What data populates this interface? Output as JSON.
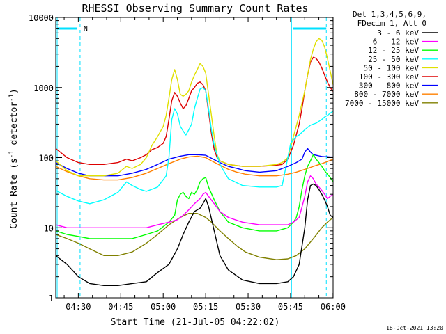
{
  "chart_data": {
    "type": "line",
    "title": "RHESSI Observing Summary Count Rates",
    "xlabel": "Start Time (21-Jul-05 04:22:02)",
    "ylabel_main": "Count Rate (s",
    "ylabel_sup1": "-1",
    "ylabel_mid": " detector",
    "ylabel_sup2": "-1",
    "ylabel_end": ")",
    "yscale": "log",
    "ylim": [
      1,
      10000
    ],
    "xlim_minutes": [
      0,
      98
    ],
    "x_ticks": [
      {
        "m": 7.97,
        "label": "04:30"
      },
      {
        "m": 22.97,
        "label": "04:45"
      },
      {
        "m": 37.97,
        "label": "05:00"
      },
      {
        "m": 52.97,
        "label": "05:15"
      },
      {
        "m": 67.97,
        "label": "05:30"
      },
      {
        "m": 82.97,
        "label": "05:45"
      },
      {
        "m": 97.97,
        "label": "06:00"
      }
    ],
    "y_ticks": [
      {
        "v": 1,
        "label": "1"
      },
      {
        "v": 10,
        "label": "10"
      },
      {
        "v": 100,
        "label": "100"
      },
      {
        "v": 1000,
        "label": "1000"
      },
      {
        "v": 10000,
        "label": "10000"
      }
    ],
    "legend_header": [
      "Det 1,3,4,5,6,9,",
      "FDecim 1, Att 0"
    ],
    "night_marker": "N",
    "footer_date": "18-Oct-2021 13:20",
    "series": [
      {
        "name": "3 - 6 keV",
        "color": "#000000",
        "x": [
          0,
          4,
          8,
          12,
          17,
          22,
          27,
          32,
          36,
          40,
          43,
          45,
          47,
          49,
          51,
          52,
          53,
          54,
          56,
          58,
          61,
          66,
          72,
          78,
          82,
          84,
          86,
          88,
          89,
          90,
          91,
          92,
          93,
          94,
          95,
          96,
          97,
          98
        ],
        "y": [
          4,
          3,
          2,
          1.6,
          1.5,
          1.5,
          1.6,
          1.7,
          2.3,
          3,
          5,
          8,
          12,
          17,
          19,
          22,
          26,
          20,
          9,
          4,
          2.5,
          1.8,
          1.6,
          1.6,
          1.7,
          2,
          3,
          10,
          25,
          40,
          42,
          40,
          35,
          30,
          25,
          20,
          15,
          14
        ]
      },
      {
        "name": "6 - 12 keV",
        "color": "#ff00ff",
        "x": [
          0,
          4,
          8,
          12,
          17,
          22,
          27,
          32,
          36,
          40,
          43,
          45,
          47,
          49,
          51,
          52,
          53,
          54,
          56,
          58,
          61,
          66,
          72,
          78,
          82,
          84,
          86,
          88,
          89,
          90,
          91,
          92,
          93,
          94,
          95,
          96,
          97,
          98
        ],
        "y": [
          11,
          10,
          10,
          10,
          10,
          10,
          10,
          10,
          11,
          12,
          13,
          15,
          18,
          22,
          26,
          30,
          32,
          28,
          22,
          17,
          14,
          12,
          11,
          11,
          11,
          12,
          14,
          28,
          45,
          55,
          50,
          42,
          38,
          34,
          30,
          26,
          28,
          30
        ]
      },
      {
        "name": "12 - 25 keV",
        "color": "#00ff00",
        "x": [
          0,
          4,
          8,
          12,
          17,
          22,
          27,
          32,
          36,
          40,
          42,
          43,
          44,
          45,
          46,
          47,
          48,
          49,
          50,
          51,
          52,
          53,
          54,
          56,
          58,
          61,
          66,
          72,
          78,
          82,
          84,
          85,
          86,
          87,
          88,
          89,
          90,
          91,
          92,
          93,
          94,
          95,
          96,
          97,
          98
        ],
        "y": [
          9,
          8,
          7.5,
          7,
          7,
          7,
          7,
          8,
          9,
          12,
          15,
          25,
          30,
          32,
          28,
          26,
          32,
          30,
          35,
          45,
          50,
          52,
          38,
          25,
          17,
          12,
          10,
          9,
          9,
          10,
          12,
          14,
          20,
          35,
          55,
          75,
          90,
          110,
          95,
          85,
          75,
          65,
          58,
          52,
          45
        ]
      },
      {
        "name": "25 - 50 keV",
        "color": "#00ffff",
        "x": [
          0,
          4,
          8,
          12,
          17,
          22,
          25,
          27,
          30,
          32,
          36,
          39,
          40,
          41,
          42,
          43,
          44,
          45,
          46,
          47,
          48,
          49,
          50,
          51,
          52,
          53,
          54,
          55,
          56,
          58,
          61,
          66,
          72,
          78,
          80,
          82,
          83,
          84,
          85,
          86,
          87,
          88,
          89,
          90,
          91,
          92,
          93,
          94,
          95,
          96,
          97,
          98
        ],
        "y": [
          34,
          28,
          24,
          22,
          25,
          32,
          45,
          40,
          35,
          33,
          38,
          55,
          100,
          350,
          500,
          420,
          280,
          240,
          210,
          250,
          300,
          500,
          700,
          950,
          1000,
          900,
          500,
          250,
          150,
          80,
          50,
          40,
          38,
          38,
          40,
          100,
          160,
          180,
          200,
          210,
          230,
          250,
          270,
          290,
          300,
          310,
          330,
          350,
          380,
          400,
          430,
          460
        ]
      },
      {
        "name": "50 - 100 keV",
        "color": "#e0e000",
        "x": [
          0,
          4,
          8,
          12,
          17,
          22,
          25,
          27,
          30,
          32,
          34,
          36,
          38,
          39,
          40,
          41,
          42,
          43,
          44,
          45,
          46,
          47,
          48,
          49,
          50,
          51,
          52,
          53,
          54,
          55,
          56,
          57,
          58,
          61,
          66,
          72,
          78,
          80,
          82,
          84,
          86,
          87,
          88,
          89,
          90,
          91,
          92,
          93,
          94,
          95,
          96,
          97,
          98
        ],
        "y": [
          90,
          65,
          55,
          55,
          55,
          60,
          75,
          70,
          80,
          100,
          150,
          200,
          280,
          400,
          700,
          1300,
          1800,
          1300,
          800,
          750,
          800,
          900,
          1200,
          1500,
          1800,
          2200,
          2000,
          1600,
          800,
          400,
          200,
          110,
          90,
          80,
          75,
          75,
          80,
          85,
          100,
          200,
          400,
          600,
          900,
          1500,
          2500,
          3500,
          4500,
          5000,
          4700,
          3800,
          2600,
          1700,
          1100
        ]
      },
      {
        "name": "100 - 300 keV",
        "color": "#dd0000",
        "x": [
          0,
          4,
          8,
          12,
          17,
          22,
          25,
          27,
          30,
          32,
          34,
          36,
          38,
          39,
          40,
          41,
          42,
          43,
          44,
          45,
          46,
          47,
          48,
          49,
          50,
          51,
          52,
          53,
          54,
          55,
          56,
          57,
          58,
          61,
          66,
          72,
          78,
          80,
          82,
          84,
          86,
          87,
          88,
          89,
          90,
          91,
          92,
          93,
          94,
          95,
          96,
          97,
          98
        ],
        "y": [
          135,
          100,
          85,
          80,
          80,
          85,
          95,
          90,
          100,
          110,
          130,
          140,
          160,
          200,
          350,
          650,
          850,
          750,
          600,
          500,
          550,
          700,
          900,
          1000,
          1150,
          1200,
          1100,
          900,
          450,
          220,
          130,
          100,
          90,
          80,
          75,
          75,
          78,
          80,
          95,
          150,
          300,
          500,
          900,
          1500,
          2300,
          2700,
          2600,
          2300,
          1900,
          1500,
          1200,
          1000,
          880
        ]
      },
      {
        "name": "300 - 800 keV",
        "color": "#0000ff",
        "x": [
          0,
          4,
          8,
          12,
          17,
          22,
          27,
          32,
          36,
          40,
          44,
          47,
          50,
          53,
          55,
          58,
          61,
          64,
          67,
          72,
          78,
          82,
          85,
          87,
          88,
          89,
          90,
          91,
          92,
          93,
          94,
          95,
          96,
          97,
          98
        ],
        "y": [
          85,
          70,
          60,
          55,
          55,
          55,
          60,
          68,
          80,
          95,
          105,
          110,
          110,
          108,
          98,
          85,
          75,
          70,
          65,
          62,
          65,
          75,
          85,
          95,
          120,
          135,
          120,
          110,
          108,
          106,
          104,
          103,
          103,
          102,
          102
        ]
      },
      {
        "name": "800 - 7000 keV",
        "color": "#ff8000",
        "x": [
          0,
          4,
          8,
          12,
          17,
          22,
          27,
          32,
          36,
          40,
          44,
          47,
          50,
          53,
          55,
          58,
          61,
          64,
          67,
          72,
          78,
          82,
          85,
          88,
          91,
          94,
          96,
          98
        ],
        "y": [
          75,
          63,
          55,
          50,
          48,
          48,
          52,
          60,
          70,
          82,
          95,
          102,
          105,
          100,
          90,
          78,
          68,
          62,
          58,
          55,
          55,
          58,
          62,
          68,
          75,
          82,
          88,
          95
        ]
      },
      {
        "name": "7000 - 15000 keV",
        "color": "#808000",
        "x": [
          0,
          4,
          8,
          12,
          17,
          22,
          27,
          32,
          36,
          40,
          44,
          47,
          50,
          53,
          55,
          58,
          61,
          64,
          67,
          72,
          78,
          82,
          85,
          88,
          91,
          94,
          96,
          98
        ],
        "y": [
          8,
          7,
          6,
          5,
          4,
          4,
          4.5,
          6,
          8,
          11,
          14,
          16,
          16,
          14,
          12,
          9,
          7,
          5.5,
          4.5,
          3.8,
          3.5,
          3.6,
          4,
          5,
          7,
          10,
          12,
          14
        ]
      }
    ]
  }
}
